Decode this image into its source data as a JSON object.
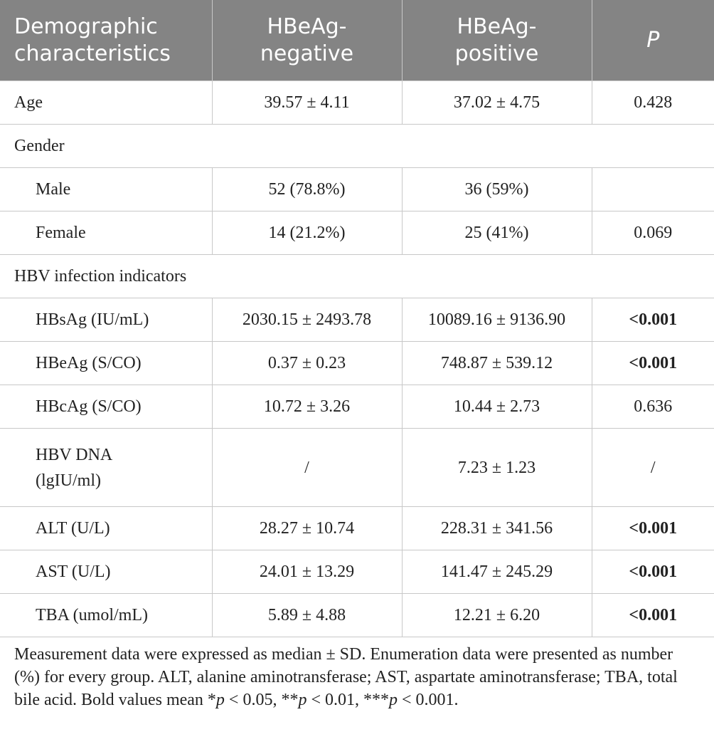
{
  "table": {
    "header": [
      "Demographic characteristics",
      "HBeAg-negative",
      "HBeAg-positive",
      "P"
    ],
    "header_italic": [
      false,
      false,
      false,
      true
    ],
    "rows": [
      {
        "cells": [
          "Age",
          "39.57 ± 4.11",
          "37.02 ± 4.75",
          "0.428"
        ]
      },
      {
        "section": "Gender"
      },
      {
        "cells": [
          "Male",
          "52 (78.8%)",
          "36 (59%)",
          null
        ],
        "indent": true
      },
      {
        "cells": [
          "Female",
          "14 (21.2%)",
          "25 (41%)",
          "0.069"
        ],
        "indent": true
      },
      {
        "section": "HBV infection indicators"
      },
      {
        "cells": [
          "HBsAg (IU/mL)",
          "2030.15 ± 2493.78",
          "10089.16 ± 9136.90",
          "<0.001"
        ],
        "indent": true,
        "bold_p": true
      },
      {
        "cells": [
          "HBeAg (S/CO)",
          "0.37 ± 0.23",
          "748.87 ± 539.12",
          "<0.001"
        ],
        "indent": true,
        "bold_p": true
      },
      {
        "cells": [
          "HBcAg (S/CO)",
          "10.72 ± 3.26",
          "10.44 ± 2.73",
          "0.636"
        ],
        "indent": true
      },
      {
        "cells": [
          "HBV DNA (lgIU/ml)",
          "/",
          "7.23 ± 1.23",
          "/"
        ],
        "indent": true,
        "tall": true
      },
      {
        "cells": [
          "ALT (U/L)",
          "28.27 ± 10.74",
          "228.31 ± 341.56",
          "<0.001"
        ],
        "indent": true,
        "bold_p": true
      },
      {
        "cells": [
          "AST (U/L)",
          "24.01 ± 13.29",
          "141.47 ± 245.29",
          "<0.001"
        ],
        "indent": true,
        "bold_p": true
      },
      {
        "cells": [
          "TBA (umol/mL)",
          "5.89 ± 4.88",
          "12.21 ± 6.20",
          "<0.001"
        ],
        "indent": true,
        "bold_p": true
      }
    ],
    "footnote": [
      {
        "text": "Measurement data were expressed as median ± SD. Enumeration data were presented as number (%) for every group. ALT, alanine aminotransferase; AST, aspartate aminotransferase; TBA, total bile acid. Bold values mean *"
      },
      {
        "text": "p",
        "italic": true
      },
      {
        "text": " < 0.05, **"
      },
      {
        "text": "p",
        "italic": true
      },
      {
        "text": " < 0.01, ***"
      },
      {
        "text": "p",
        "italic": true
      },
      {
        "text": " < 0.001."
      }
    ]
  }
}
